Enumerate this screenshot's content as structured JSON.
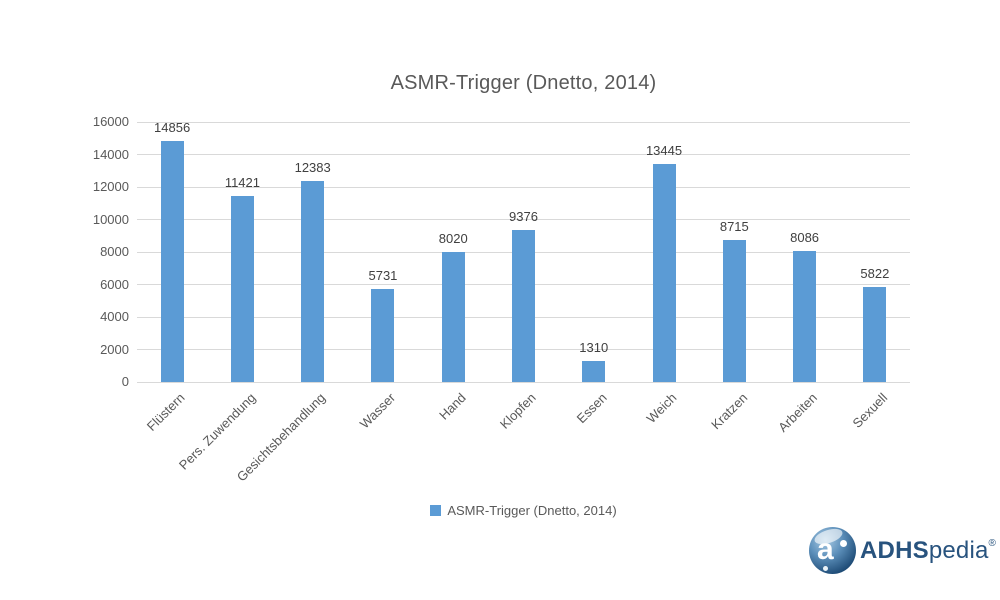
{
  "chart_data": {
    "type": "bar",
    "title": "ASMR-Trigger (Dnetto, 2014)",
    "categories": [
      "Flüstern",
      "Pers. Zuwendung",
      "Gesichtsbehandlung",
      "Wasser",
      "Hand",
      "Klopfen",
      "Essen",
      "Weich",
      "Kratzen",
      "Arbeiten",
      "Sexuell"
    ],
    "values": [
      14856,
      11421,
      12383,
      5731,
      8020,
      9376,
      1310,
      13445,
      8715,
      8086,
      5822
    ],
    "series_name": "ASMR-Trigger (Dnetto, 2014)",
    "xlabel": "",
    "ylabel": "",
    "ylim": [
      0,
      16000
    ],
    "ytick_step": 2000,
    "ytick_labels": [
      "0",
      "2000",
      "4000",
      "6000",
      "8000",
      "10000",
      "12000",
      "14000",
      "16000"
    ],
    "grid": true,
    "legend_position": "bottom",
    "bar_color": "#5b9bd5",
    "grid_color": "#d9d9d9",
    "axis_text_color": "#595959",
    "value_label_color": "#404040",
    "data_labels_shown": true,
    "x_label_rotation_deg": -45
  },
  "legend": {
    "label": "ASMR-Trigger (Dnetto, 2014)"
  },
  "logo": {
    "brand_bold": "ADHS",
    "brand_light": "pedia",
    "registered": "®",
    "icon_letter": "a",
    "brand_color": "#28537e"
  }
}
